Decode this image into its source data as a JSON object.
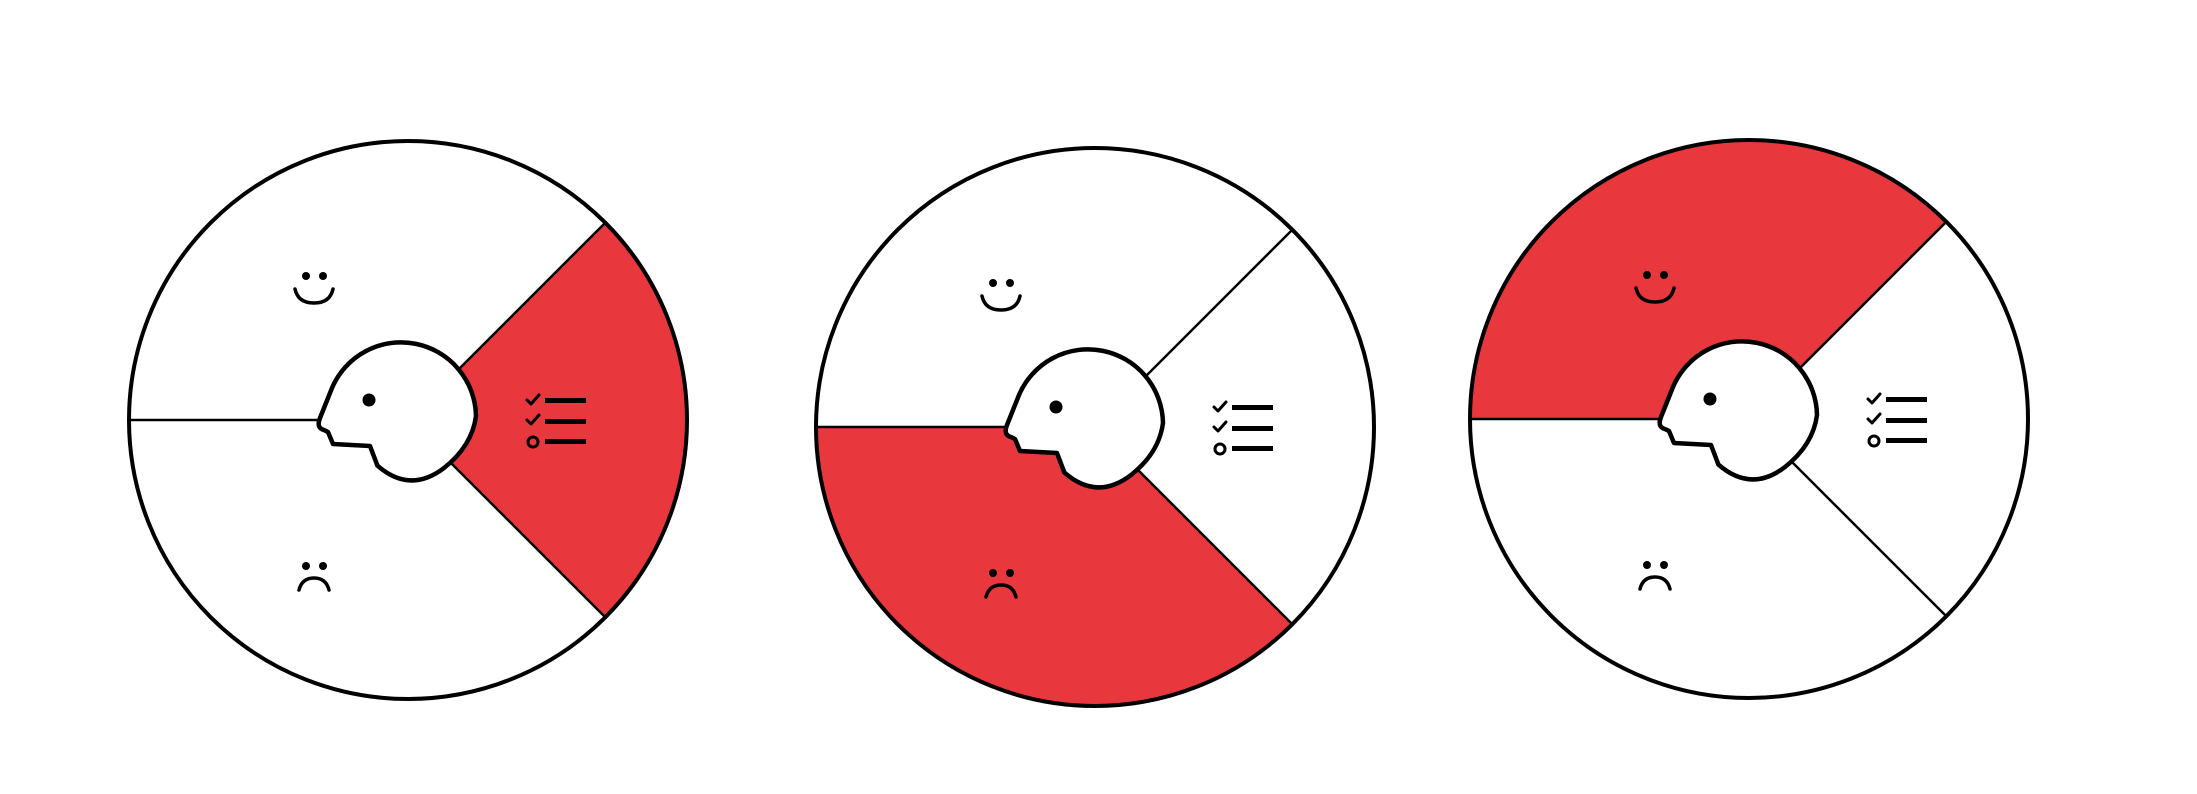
{
  "colors": {
    "highlight": "#e8383d",
    "background": "#ffffff",
    "outline": "#000000"
  },
  "segments": [
    "happy-face-icon",
    "checklist-icon",
    "sad-face-icon"
  ],
  "wheels": [
    {
      "highlighted_segment": "checklist-icon"
    },
    {
      "highlighted_segment": "sad-face-icon"
    },
    {
      "highlighted_segment": "happy-face-icon"
    }
  ]
}
